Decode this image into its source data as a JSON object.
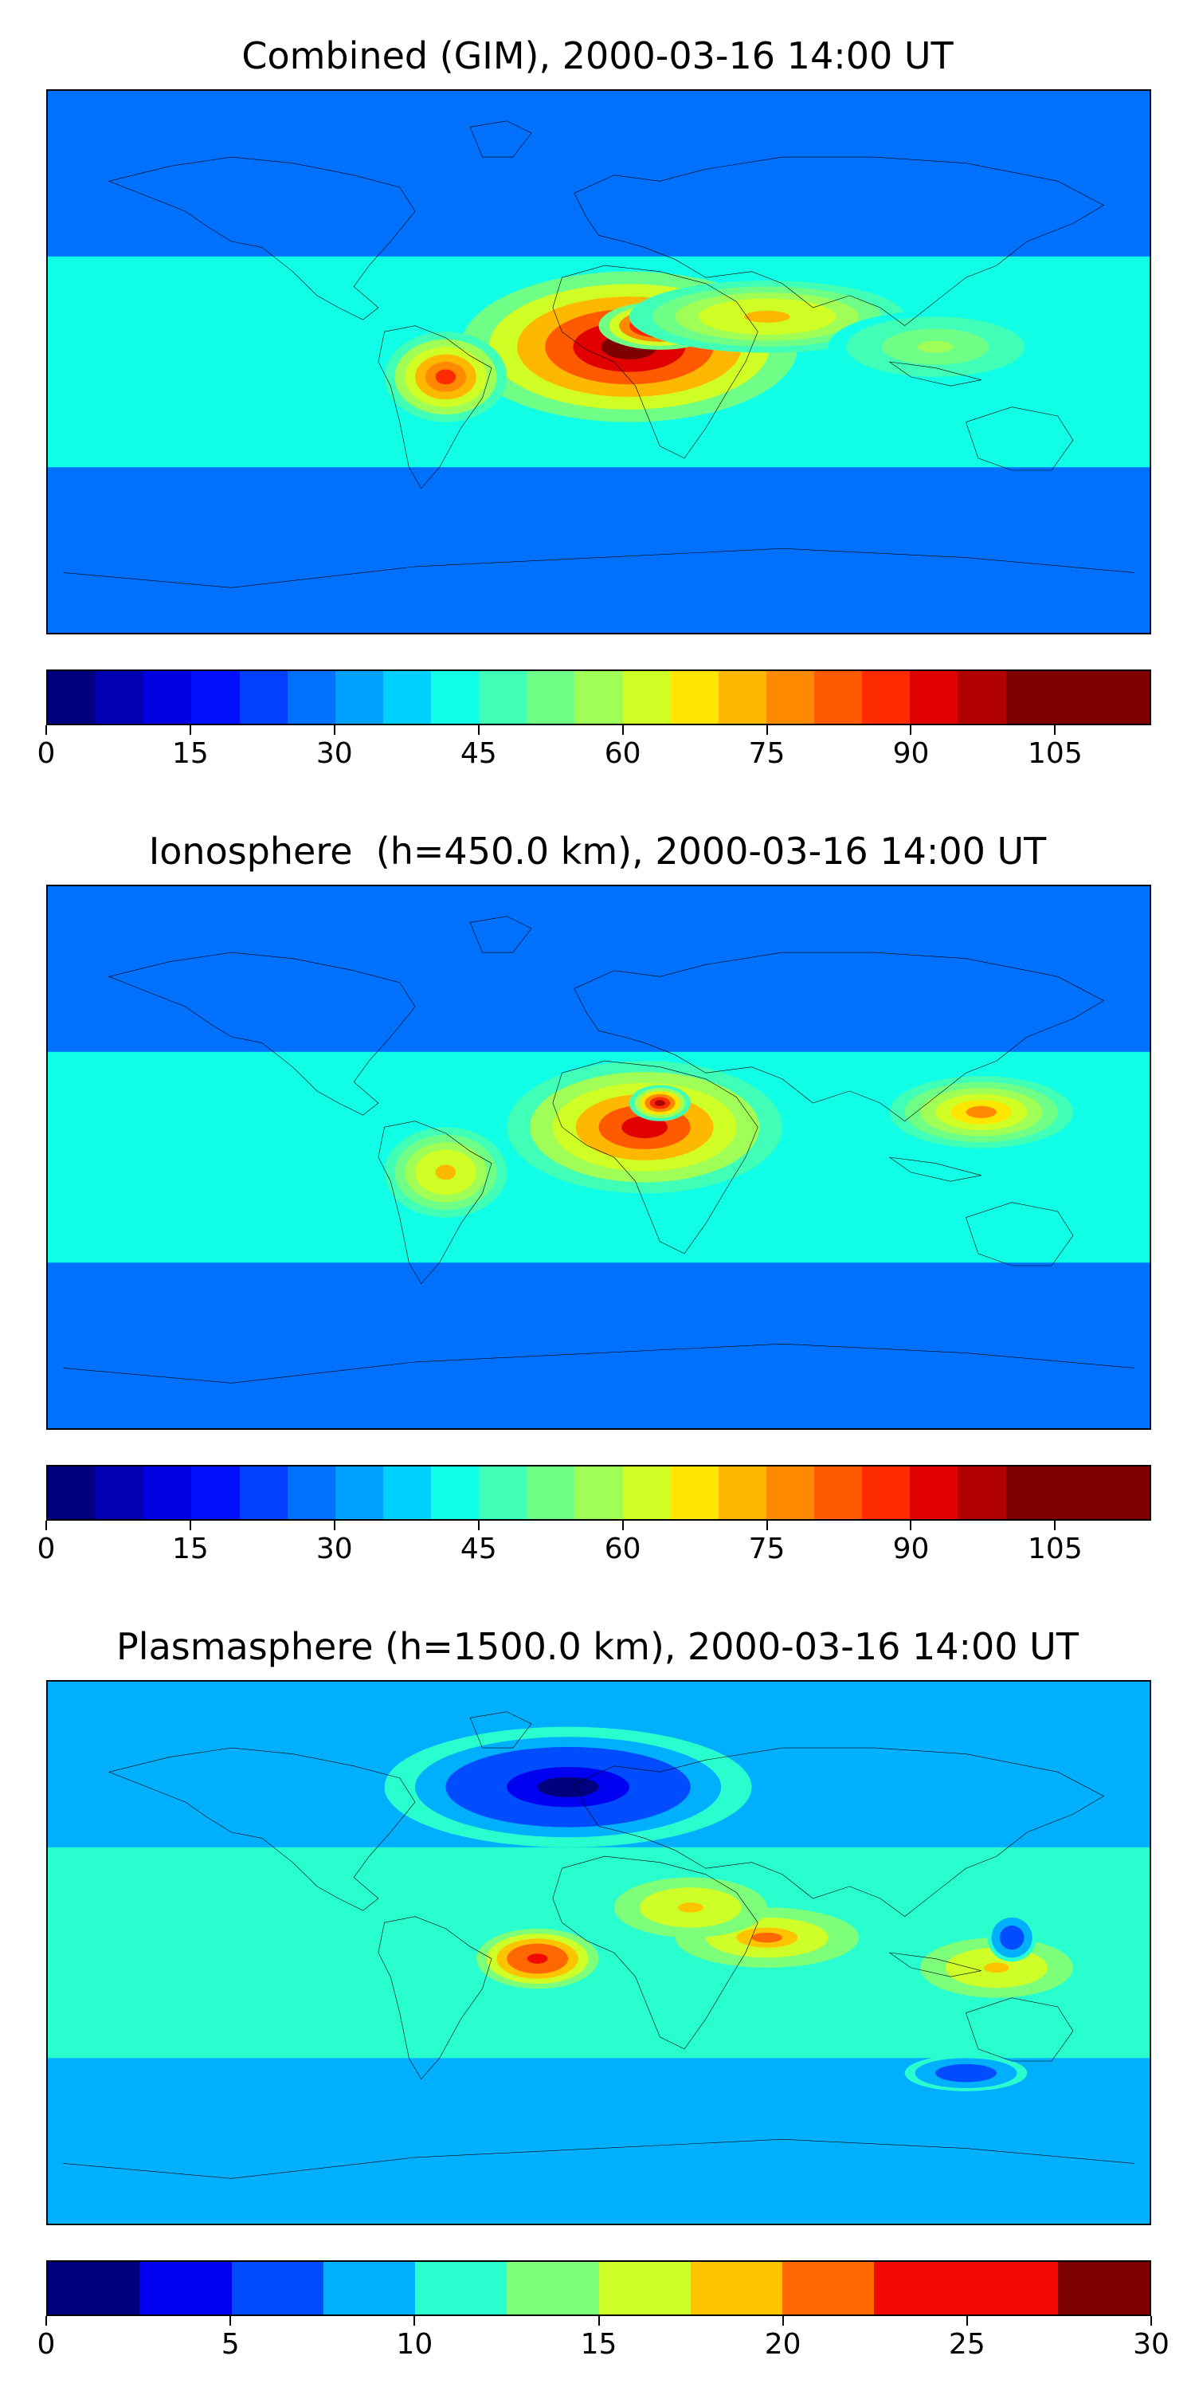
{
  "panels": [
    {
      "id": "combined",
      "title": "Combined (GIM), 2000-03-16 14:00 UT",
      "colorbar": {
        "vmin": 0,
        "vmax": 115,
        "levels": 23,
        "ticks": [
          "0",
          "15",
          "30",
          "45",
          "60",
          "75",
          "90",
          "105"
        ],
        "tick_values": [
          0,
          15,
          30,
          45,
          60,
          75,
          90,
          105
        ]
      },
      "blobs": [
        {
          "lon": 10,
          "lat": 5,
          "rx": 55,
          "ry": 25,
          "v": 100
        },
        {
          "lon": 20,
          "lat": 12,
          "rx": 20,
          "ry": 8,
          "v": 110
        },
        {
          "lon": 55,
          "lat": 15,
          "rx": 45,
          "ry": 12,
          "v": 70
        },
        {
          "lon": 110,
          "lat": 5,
          "rx": 35,
          "ry": 12,
          "v": 55
        },
        {
          "lon": -50,
          "lat": -5,
          "rx": 20,
          "ry": 15,
          "v": 85
        }
      ]
    },
    {
      "id": "ionosphere",
      "title": "Ionosphere  (h=450.0 km), 2000-03-16 14:00 UT",
      "colorbar": {
        "vmin": 0,
        "vmax": 115,
        "levels": 23,
        "ticks": [
          "0",
          "15",
          "30",
          "45",
          "60",
          "75",
          "90",
          "105"
        ],
        "tick_values": [
          0,
          15,
          30,
          45,
          60,
          75,
          90,
          105
        ]
      },
      "blobs": [
        {
          "lon": 15,
          "lat": 10,
          "rx": 45,
          "ry": 22,
          "v": 90
        },
        {
          "lon": 20,
          "lat": 18,
          "rx": 10,
          "ry": 6,
          "v": 95
        },
        {
          "lon": 125,
          "lat": 15,
          "rx": 30,
          "ry": 12,
          "v": 75
        },
        {
          "lon": -50,
          "lat": -5,
          "rx": 20,
          "ry": 15,
          "v": 70
        }
      ]
    },
    {
      "id": "plasmasphere",
      "title": "Plasmasphere (h=1500.0 km), 2000-03-16 14:00 UT",
      "colorbar": {
        "vmin": 0,
        "vmax": 30,
        "levels": 12,
        "ticks": [
          "0",
          "5",
          "10",
          "15",
          "20",
          "25",
          "30"
        ],
        "tick_values": [
          0,
          5,
          10,
          15,
          20,
          25,
          30
        ]
      },
      "blobs": [
        {
          "lon": -20,
          "lat": -2,
          "rx": 20,
          "ry": 10,
          "v": 24
        },
        {
          "lon": 55,
          "lat": 5,
          "rx": 30,
          "ry": 10,
          "v": 20
        },
        {
          "lon": 30,
          "lat": 15,
          "rx": 25,
          "ry": 10,
          "v": 18
        },
        {
          "lon": 130,
          "lat": -5,
          "rx": 25,
          "ry": 10,
          "v": 18
        },
        {
          "lon": -10,
          "lat": 55,
          "rx": 60,
          "ry": 20,
          "v": 2
        },
        {
          "lon": 135,
          "lat": 5,
          "rx": 8,
          "ry": 8,
          "v": 5
        },
        {
          "lon": 120,
          "lat": -40,
          "rx": 20,
          "ry": 6,
          "v": 5
        }
      ]
    }
  ],
  "colors": {
    "jet23": [
      "#00007f",
      "#0000b0",
      "#0000e1",
      "#0010ff",
      "#0040ff",
      "#0070ff",
      "#00a0ff",
      "#00d0ff",
      "#10ffe6",
      "#40ffb6",
      "#70ff86",
      "#a0ff56",
      "#d0ff26",
      "#ffe600",
      "#ffb800",
      "#ff8900",
      "#ff5a00",
      "#ff2b00",
      "#e00000",
      "#b00000",
      "#7f0000",
      "#7f0000",
      "#7f0000"
    ],
    "jet12": [
      "#00007f",
      "#0000f1",
      "#004cff",
      "#00b0ff",
      "#29ffce",
      "#7dff7a",
      "#ceff29",
      "#ffc400",
      "#ff6800",
      "#f10800",
      "#f10800",
      "#7f0000"
    ]
  }
}
